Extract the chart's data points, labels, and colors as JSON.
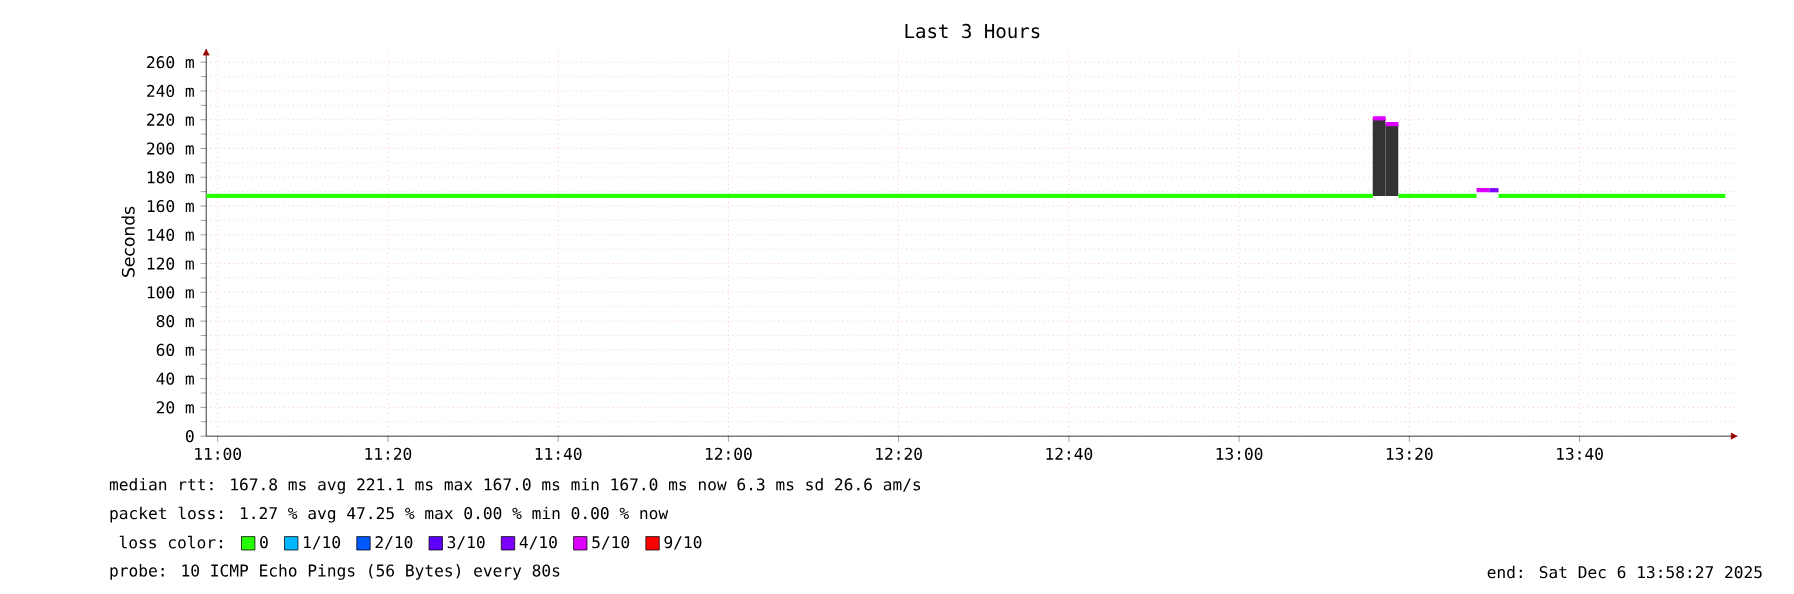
{
  "chart_data": {
    "type": "line",
    "title": "Last 3 Hours",
    "ylabel": "Seconds",
    "legend_title": "loss color:",
    "xlim": [
      10.9775,
      13.978
    ],
    "ylim": [
      0,
      270
    ],
    "xticks": [
      {
        "value": 11,
        "label": "11:00"
      },
      {
        "value": 11.3333,
        "label": "11:20"
      },
      {
        "value": 11.6667,
        "label": "11:40"
      },
      {
        "value": 12,
        "label": "12:00"
      },
      {
        "value": 12.3333,
        "label": "12:20"
      },
      {
        "value": 12.6667,
        "label": "12:40"
      },
      {
        "value": 13,
        "label": "13:00"
      },
      {
        "value": 13.3333,
        "label": "13:20"
      },
      {
        "value": 13.6667,
        "label": "13:40"
      }
    ],
    "yticks": [
      0,
      {
        "value": 20,
        "label": "20 m"
      },
      {
        "value": 40,
        "label": "40 m"
      },
      {
        "value": 60,
        "label": "60 m"
      },
      {
        "value": 80,
        "label": "80 m"
      },
      {
        "value": 100,
        "label": "100 m"
      },
      {
        "value": 120,
        "label": "120 m"
      },
      {
        "value": 140,
        "label": "140 m"
      },
      {
        "value": 160,
        "label": "160 m"
      },
      {
        "value": 180,
        "label": "180 m"
      },
      {
        "value": 200,
        "label": "200 m"
      },
      {
        "value": 220,
        "label": "220 m"
      },
      {
        "value": 240,
        "label": "240 m"
      },
      {
        "value": 260,
        "label": "260 m"
      }
    ],
    "grid": true,
    "legend": "bottom",
    "series": [
      {
        "type": "bar",
        "color": "#333333",
        "x": [
          13.2742,
          13.2992
        ],
        "base": [
          167,
          167
        ],
        "values": [
          54,
          50
        ]
      },
      {
        "name": "0",
        "color": "#26ff00",
        "x": [
          10.9775,
          13.262,
          13.287,
          13.312,
          13.39,
          13.465,
          13.487,
          13.508,
          13.952
        ],
        "values": [
          167,
          167,
          null,
          167,
          167,
          167,
          null,
          167,
          167
        ]
      },
      {
        "name": "1/10",
        "color": "#00b8ff"
      },
      {
        "name": "2/10",
        "color": "#0059ff"
      },
      {
        "name": "3/10",
        "color": "#5e00ff"
      },
      {
        "name": "4/10",
        "color": "#7e00ff",
        "x": [
          13.49,
          13.508
        ],
        "values": [
          171,
          171
        ]
      },
      {
        "name": "5/10",
        "color": "#dd00ff",
        "x": [
          13.262,
          13.287,
          13.2871,
          13.2872,
          13.312,
          13.4,
          13.465,
          13.49
        ],
        "values": [
          221,
          221,
          null,
          217,
          217,
          null,
          171,
          171
        ]
      },
      {
        "name": "9/10",
        "color": "#ff0000"
      }
    ],
    "annotations": [
      "median rtt:  167.8 ms avg  221.1 ms max  167.0 ms min  167.0 ms now  6.3 ms sd  26.6   am/s",
      "packet loss: 1.27 % avg  47.25 % max  0.00 % min  0.00 % now",
      "probe:       10 ICMP Echo Pings (56 Bytes) every 80s",
      "end: Sat Dec  6 13:58:27 2025"
    ]
  }
}
